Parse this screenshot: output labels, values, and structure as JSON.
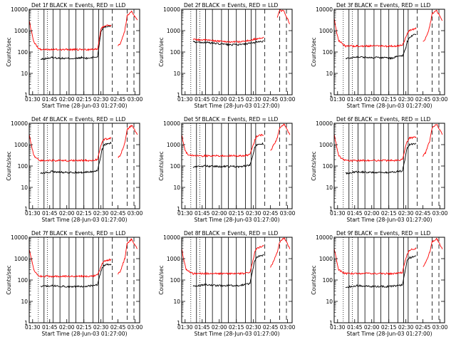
{
  "figure": {
    "x_tick_labels": [
      "01:30",
      "01:45",
      "02:00",
      "02:15",
      "02:30",
      "02:45",
      "03:00"
    ],
    "y_tick_labels": [
      "1",
      "10",
      "100",
      "1000",
      "10000"
    ],
    "ylabel": "Counts/sec",
    "xlabel": "Start Time (28-Jun-03 01:27:00)",
    "colors": {
      "events": "#000000",
      "lld": "#ff0000",
      "axes": "#000000",
      "background": "#ffffff"
    }
  },
  "chart_data": [
    {
      "type": "line",
      "title": "Det 1f BLACK = Events, RED = LLD",
      "x_minutes": [
        0,
        2,
        4,
        8,
        10,
        20,
        30,
        42,
        46,
        50,
        55,
        60,
        63,
        64,
        66,
        72,
        74,
        78,
        80,
        84,
        86,
        90,
        95
      ],
      "series": [
        {
          "name": "Events",
          "values": [
            null,
            null,
            null,
            null,
            45,
            55,
            50,
            50,
            55,
            50,
            55,
            60,
            900,
            1200,
            1500,
            1700,
            null,
            null,
            null,
            null,
            null,
            null,
            null
          ]
        },
        {
          "name": "LLD",
          "values": [
            3000,
            900,
            300,
            150,
            130,
            130,
            130,
            130,
            130,
            130,
            130,
            140,
            1200,
            1400,
            1700,
            1800,
            null,
            200,
            250,
            1000,
            5000,
            8000,
            3000
          ]
        }
      ],
      "ylim": [
        1,
        10000
      ],
      "yscale": "log",
      "xlim": [
        0,
        97
      ]
    },
    {
      "type": "line",
      "title": "Det 2f BLACK = Events, RED = LLD",
      "x_minutes": [
        0,
        2,
        4,
        8,
        10,
        20,
        30,
        42,
        46,
        50,
        55,
        60,
        63,
        64,
        66,
        72,
        74,
        78,
        80,
        84,
        86,
        90,
        95
      ],
      "series": [
        {
          "name": "Events",
          "values": [
            null,
            null,
            null,
            null,
            300,
            280,
            250,
            220,
            220,
            220,
            230,
            250,
            270,
            280,
            300,
            320,
            null,
            null,
            null,
            null,
            null,
            null,
            null
          ]
        },
        {
          "name": "LLD",
          "values": [
            null,
            null,
            null,
            null,
            380,
            370,
            330,
            300,
            300,
            300,
            320,
            350,
            380,
            400,
            420,
            450,
            null,
            null,
            null,
            4000,
            9000,
            8000,
            2000
          ]
        }
      ],
      "ylim": [
        1,
        10000
      ],
      "yscale": "log",
      "xlim": [
        0,
        97
      ]
    },
    {
      "type": "line",
      "title": "Det 3f BLACK = Events, RED = LLD",
      "x_minutes": [
        0,
        2,
        4,
        8,
        10,
        20,
        30,
        42,
        46,
        50,
        55,
        60,
        63,
        64,
        66,
        72,
        74,
        78,
        80,
        84,
        86,
        90,
        95
      ],
      "series": [
        {
          "name": "Events",
          "values": [
            null,
            null,
            null,
            null,
            50,
            60,
            55,
            55,
            55,
            50,
            60,
            65,
            150,
            300,
            500,
            700,
            null,
            null,
            null,
            null,
            null,
            null,
            null
          ]
        },
        {
          "name": "LLD",
          "values": [
            4000,
            900,
            350,
            220,
            190,
            190,
            190,
            190,
            190,
            190,
            190,
            220,
            500,
            700,
            1000,
            1300,
            null,
            300,
            400,
            1500,
            6000,
            9000,
            3000
          ]
        }
      ],
      "ylim": [
        1,
        10000
      ],
      "yscale": "log",
      "xlim": [
        0,
        97
      ]
    },
    {
      "type": "line",
      "title": "Det 4f BLACK = Events, RED = LLD",
      "x_minutes": [
        0,
        2,
        4,
        8,
        10,
        20,
        30,
        42,
        46,
        50,
        55,
        60,
        63,
        64,
        66,
        72,
        74,
        78,
        80,
        84,
        86,
        90,
        95
      ],
      "series": [
        {
          "name": "Events",
          "values": [
            null,
            null,
            null,
            null,
            45,
            55,
            50,
            50,
            50,
            50,
            55,
            60,
            300,
            600,
            1000,
            1200,
            null,
            null,
            null,
            null,
            null,
            null,
            null
          ]
        },
        {
          "name": "LLD",
          "values": [
            3000,
            900,
            300,
            200,
            180,
            180,
            180,
            180,
            180,
            180,
            180,
            200,
            900,
            1300,
            1800,
            2000,
            null,
            250,
            300,
            1200,
            5000,
            8000,
            3000
          ]
        }
      ],
      "ylim": [
        1,
        10000
      ],
      "yscale": "log",
      "xlim": [
        0,
        97
      ]
    },
    {
      "type": "line",
      "title": "Det 5f BLACK = Events, RED = LLD",
      "x_minutes": [
        0,
        2,
        4,
        8,
        10,
        20,
        30,
        42,
        46,
        50,
        55,
        60,
        63,
        64,
        66,
        72,
        74,
        78,
        80,
        84,
        86,
        90,
        95
      ],
      "series": [
        {
          "name": "Events",
          "values": [
            null,
            null,
            null,
            null,
            90,
            100,
            95,
            95,
            95,
            90,
            100,
            110,
            400,
            700,
            1000,
            1100,
            null,
            null,
            null,
            null,
            null,
            null,
            null
          ]
        },
        {
          "name": "LLD",
          "values": [
            3000,
            800,
            400,
            300,
            300,
            300,
            300,
            300,
            300,
            300,
            300,
            350,
            1000,
            1500,
            2500,
            3000,
            null,
            500,
            800,
            2000,
            6000,
            9000,
            3000
          ]
        }
      ],
      "ylim": [
        1,
        10000
      ],
      "yscale": "log",
      "xlim": [
        0,
        97
      ]
    },
    {
      "type": "line",
      "title": "Det 6f BLACK = Events, RED = LLD",
      "x_minutes": [
        0,
        2,
        4,
        8,
        10,
        20,
        30,
        42,
        46,
        50,
        55,
        60,
        63,
        64,
        66,
        72,
        74,
        78,
        80,
        84,
        86,
        90,
        95
      ],
      "series": [
        {
          "name": "Events",
          "values": [
            null,
            null,
            null,
            null,
            45,
            55,
            50,
            50,
            50,
            50,
            55,
            60,
            350,
            700,
            1000,
            1200,
            null,
            null,
            null,
            null,
            null,
            null,
            null
          ]
        },
        {
          "name": "LLD",
          "values": [
            3000,
            900,
            300,
            200,
            180,
            180,
            180,
            180,
            180,
            180,
            180,
            200,
            900,
            1400,
            2000,
            2200,
            null,
            300,
            400,
            1500,
            6000,
            9000,
            3000
          ]
        }
      ],
      "ylim": [
        1,
        10000
      ],
      "yscale": "log",
      "xlim": [
        0,
        97
      ]
    },
    {
      "type": "line",
      "title": "Det 7f BLACK = Events, RED = LLD",
      "x_minutes": [
        0,
        2,
        4,
        8,
        10,
        20,
        30,
        42,
        46,
        50,
        55,
        60,
        63,
        64,
        66,
        72,
        74,
        78,
        80,
        84,
        86,
        90,
        95
      ],
      "series": [
        {
          "name": "Events",
          "values": [
            null,
            null,
            null,
            null,
            50,
            55,
            50,
            50,
            50,
            50,
            55,
            60,
            250,
            400,
            500,
            550,
            null,
            null,
            null,
            null,
            null,
            null,
            null
          ]
        },
        {
          "name": "LLD",
          "values": [
            3000,
            900,
            300,
            160,
            150,
            150,
            150,
            150,
            150,
            150,
            150,
            170,
            400,
            600,
            800,
            900,
            null,
            200,
            250,
            1000,
            5000,
            8000,
            3000
          ]
        }
      ],
      "ylim": [
        1,
        10000
      ],
      "yscale": "log",
      "xlim": [
        0,
        97
      ]
    },
    {
      "type": "line",
      "title": "Det 8f BLACK = Events, RED = LLD",
      "x_minutes": [
        0,
        2,
        4,
        8,
        10,
        20,
        30,
        42,
        46,
        50,
        55,
        60,
        63,
        64,
        66,
        72,
        74,
        78,
        80,
        84,
        86,
        90,
        95
      ],
      "series": [
        {
          "name": "Events",
          "values": [
            null,
            null,
            null,
            null,
            50,
            60,
            55,
            55,
            55,
            55,
            60,
            70,
            400,
            800,
            1200,
            1500,
            null,
            null,
            null,
            null,
            null,
            null,
            null
          ]
        },
        {
          "name": "LLD",
          "values": [
            3000,
            800,
            300,
            220,
            200,
            200,
            200,
            200,
            200,
            200,
            200,
            230,
            1000,
            1800,
            3000,
            4000,
            null,
            400,
            600,
            2000,
            6000,
            9000,
            3000
          ]
        }
      ],
      "ylim": [
        1,
        10000
      ],
      "yscale": "log",
      "xlim": [
        0,
        97
      ]
    },
    {
      "type": "line",
      "title": "Det 9f BLACK = Events, RED = LLD",
      "x_minutes": [
        0,
        2,
        4,
        8,
        10,
        20,
        30,
        42,
        46,
        50,
        55,
        60,
        63,
        64,
        66,
        72,
        74,
        78,
        80,
        84,
        86,
        90,
        95
      ],
      "series": [
        {
          "name": "Events",
          "values": [
            null,
            null,
            null,
            null,
            45,
            55,
            50,
            50,
            50,
            50,
            55,
            60,
            400,
            800,
            1100,
            1300,
            null,
            null,
            null,
            null,
            null,
            null,
            null
          ]
        },
        {
          "name": "LLD",
          "values": [
            3000,
            900,
            300,
            220,
            200,
            200,
            200,
            200,
            200,
            200,
            200,
            230,
            1000,
            1500,
            2500,
            3000,
            null,
            400,
            600,
            2000,
            6000,
            9000,
            3000
          ]
        }
      ],
      "ylim": [
        1,
        10000
      ],
      "yscale": "log",
      "xlim": [
        0,
        97
      ]
    }
  ]
}
